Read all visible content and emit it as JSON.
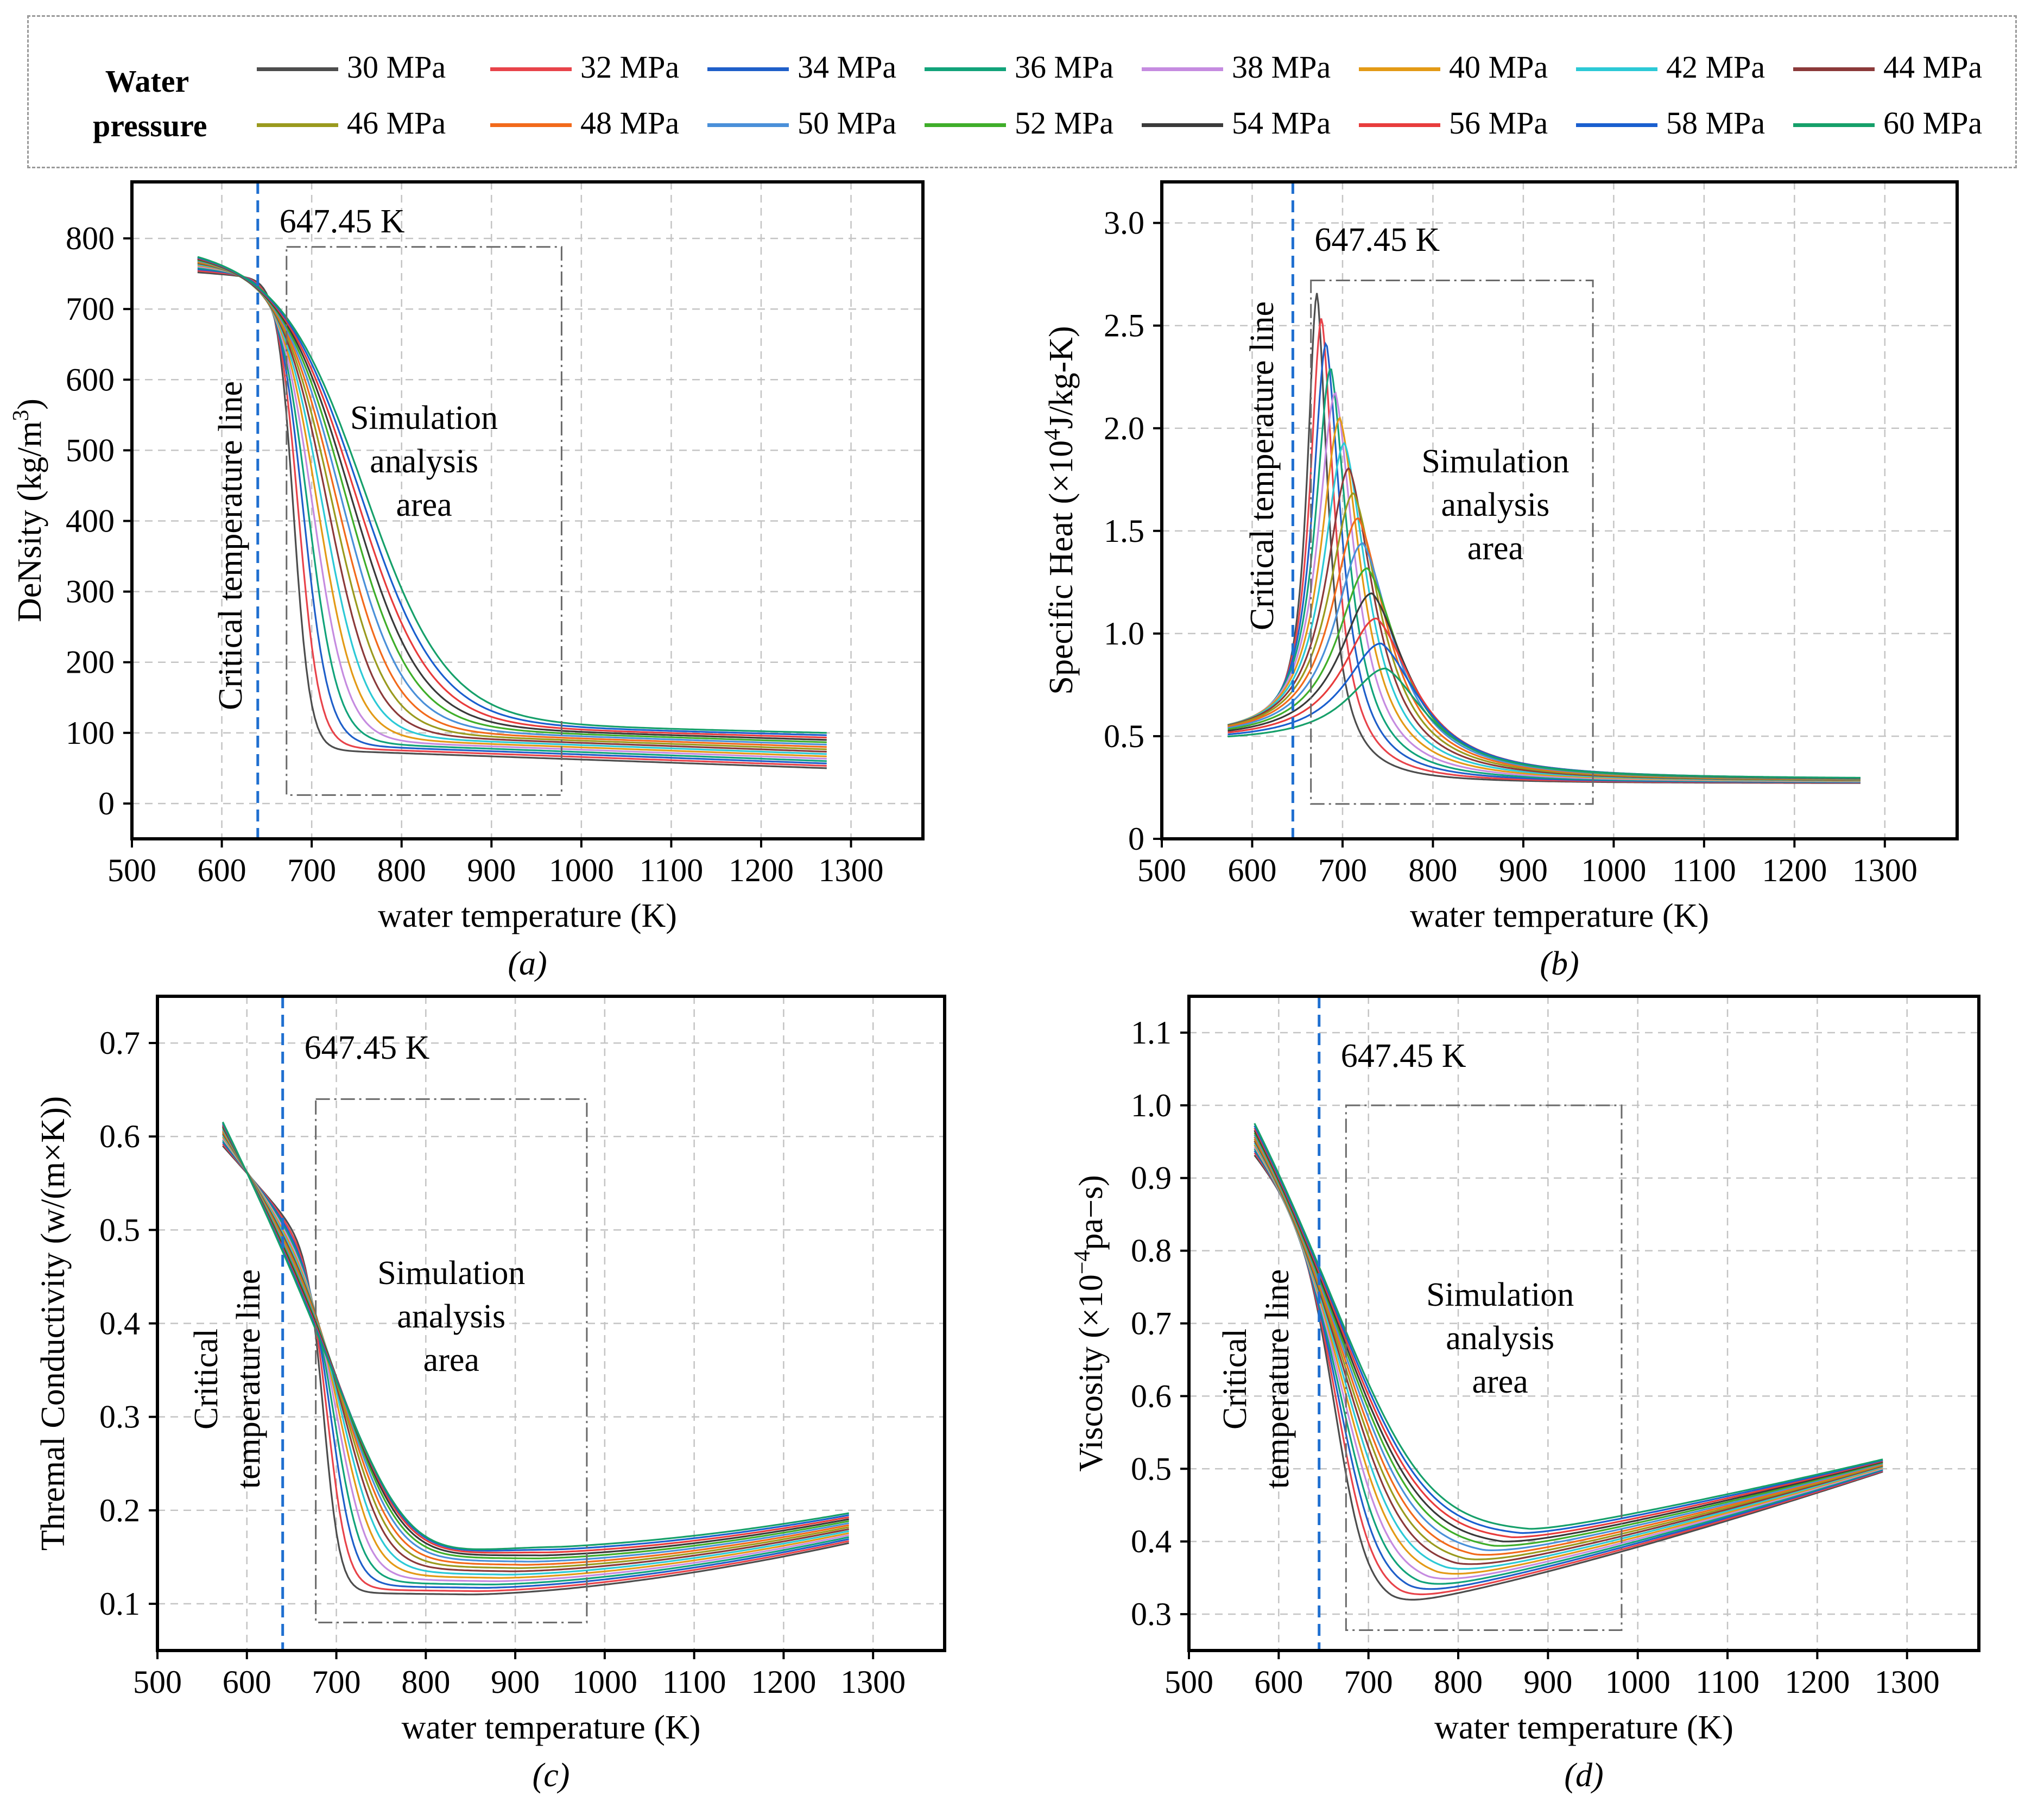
{
  "legend": {
    "title_line1": "Water",
    "title_line2": "pressure",
    "items": [
      {
        "label": "30 MPa",
        "color": "#4d4d4d"
      },
      {
        "label": "32 MPa",
        "color": "#e8434a"
      },
      {
        "label": "34 MPa",
        "color": "#1f5fc9"
      },
      {
        "label": "36 MPa",
        "color": "#12a37a"
      },
      {
        "label": "38 MPa",
        "color": "#c58be0"
      },
      {
        "label": "40 MPa",
        "color": "#e39a16"
      },
      {
        "label": "42 MPa",
        "color": "#2cc9d6"
      },
      {
        "label": "44 MPa",
        "color": "#8b3a3a"
      },
      {
        "label": "46 MPa",
        "color": "#9a9a1e"
      },
      {
        "label": "48 MPa",
        "color": "#f26a1b"
      },
      {
        "label": "50 MPa",
        "color": "#4a90d9"
      },
      {
        "label": "52 MPa",
        "color": "#3fae2a"
      },
      {
        "label": "54 MPa",
        "color": "#3a3a3a"
      },
      {
        "label": "56 MPa",
        "color": "#e83c3c"
      },
      {
        "label": "58 MPa",
        "color": "#1a5fcf"
      },
      {
        "label": "60 MPa",
        "color": "#16a06a"
      }
    ]
  },
  "chart_data": [
    {
      "type": "line",
      "panel_label": "(a)",
      "xlabel": "water temperature (K)",
      "ylabel": "DeNsity (kg/m",
      "ylabel_sup": "3",
      "ylabel_end": ")",
      "xlim": [
        500,
        1380
      ],
      "ylim": [
        -50,
        880
      ],
      "xticks": [
        500,
        600,
        700,
        800,
        900,
        1000,
        1100,
        1200,
        1300
      ],
      "yticks": [
        0,
        100,
        200,
        300,
        400,
        500,
        600,
        700,
        800
      ],
      "xtick_labels": [
        "500",
        "600",
        "700",
        "800",
        "900",
        "1000",
        "1100",
        "1200",
        "1300"
      ],
      "ytick_labels": [
        "0",
        "100",
        "200",
        "300",
        "400",
        "500",
        "600",
        "700",
        "800"
      ],
      "critical_x": 640,
      "critical_label": "647.45 K",
      "critical_text": [
        "Critical temperature line"
      ],
      "area_box": {
        "x": [
          672,
          978
        ],
        "y": [
          12,
          788
        ]
      },
      "area_text": [
        "Simulation",
        "analysis",
        "area"
      ],
      "x_range": [
        573,
        1273
      ],
      "curve": {
        "kind": "sigmoid",
        "y0": [
          752,
          785
        ],
        "yinf": [
          50,
          100
        ],
        "tc": [
          680,
          760
        ],
        "w": [
          9,
          46
        ],
        "slope": [
          -0.1,
          -0.13
        ]
      }
    },
    {
      "type": "line",
      "panel_label": "(b)",
      "xlabel": "water temperature (K)",
      "ylabel": "Specific Heat (×10",
      "ylabel_sup": "4",
      "ylabel_end": "J/kg-K)",
      "xlim": [
        500,
        1380
      ],
      "ylim": [
        0,
        3.2
      ],
      "xticks": [
        500,
        600,
        700,
        800,
        900,
        1000,
        1100,
        1200,
        1300
      ],
      "yticks": [
        0,
        0.5,
        1.0,
        1.5,
        2.0,
        2.5,
        3.0
      ],
      "xtick_labels": [
        "500",
        "600",
        "700",
        "800",
        "900",
        "1000",
        "1100",
        "1200",
        "1300"
      ],
      "ytick_labels": [
        "0",
        "0.5",
        "1.0",
        "1.5",
        "2.0",
        "2.5",
        "3.0"
      ],
      "critical_x": 645,
      "critical_label": "647.45 K",
      "critical_text": [
        "Critical temperature line"
      ],
      "area_box": {
        "x": [
          665,
          977
        ],
        "y": [
          0.17,
          2.72
        ]
      },
      "area_text": [
        "Simulation",
        "analysis",
        "area"
      ],
      "x_range": [
        573,
        1273
      ],
      "curve": {
        "kind": "peak",
        "peak_x": [
          672,
          748
        ],
        "peak_y": [
          2.66,
          0.83
        ],
        "base": [
          0.27,
          0.29
        ],
        "start": [
          0.5,
          0.47
        ],
        "wl": [
          10,
          38
        ],
        "wr": [
          16,
          60
        ]
      }
    },
    {
      "type": "line",
      "panel_label": "(c)",
      "xlabel": "water temperature (K)",
      "ylabel": "Thremal Conductivity (w/(m×K))",
      "ylabel_sup": "",
      "ylabel_end": "",
      "xlim": [
        500,
        1380
      ],
      "ylim": [
        0.05,
        0.75
      ],
      "xticks": [
        500,
        600,
        700,
        800,
        900,
        1000,
        1100,
        1200,
        1300
      ],
      "yticks": [
        0.1,
        0.2,
        0.3,
        0.4,
        0.5,
        0.6,
        0.7
      ],
      "xtick_labels": [
        "500",
        "600",
        "700",
        "800",
        "900",
        "1000",
        "1100",
        "1200",
        "1300"
      ],
      "ytick_labels": [
        "0.1",
        "0.2",
        "0.3",
        "0.4",
        "0.5",
        "0.6",
        "0.7"
      ],
      "critical_x": 640,
      "critical_label": "647.45 K",
      "critical_text": [
        "Critical",
        "temperature line"
      ],
      "area_box": {
        "x": [
          677,
          980
        ],
        "y": [
          0.08,
          0.64
        ]
      },
      "area_text": [
        "Simulation",
        "analysis",
        "area"
      ],
      "x_range": [
        573,
        1273
      ],
      "curve": {
        "kind": "valley",
        "y0": [
          0.59,
          0.62
        ],
        "ymin": [
          0.11,
          0.163
        ],
        "xmin": [
          850,
          950
        ],
        "yend": [
          0.165,
          0.197
        ],
        "tc": [
          687,
          757
        ],
        "w": [
          9,
          40
        ],
        "decay": [
          0.0012,
          0.0021
        ],
        "rise": 1.6
      }
    },
    {
      "type": "line",
      "panel_label": "(d)",
      "xlabel": "water temperature (K)",
      "ylabel": "Viscosity (×10",
      "ylabel_sup": "−4",
      "ylabel_end": "pa−s)",
      "xlim": [
        500,
        1380
      ],
      "ylim": [
        0.25,
        1.15
      ],
      "xticks": [
        500,
        600,
        700,
        800,
        900,
        1000,
        1100,
        1200,
        1300
      ],
      "yticks": [
        0.3,
        0.4,
        0.5,
        0.6,
        0.7,
        0.8,
        0.9,
        1.0,
        1.1
      ],
      "xtick_labels": [
        "500",
        "600",
        "700",
        "800",
        "900",
        "1000",
        "1100",
        "1200",
        "1300"
      ],
      "ytick_labels": [
        "0.3",
        "0.4",
        "0.5",
        "0.6",
        "0.7",
        "0.8",
        "0.9",
        "1.0",
        "1.1"
      ],
      "critical_x": 645,
      "critical_label": "647.45 K",
      "critical_text": [
        "Critical",
        "temperature line"
      ],
      "area_box": {
        "x": [
          675,
          982
        ],
        "y": [
          0.278,
          1.0
        ]
      },
      "area_text": [
        "Simulation",
        "analysis",
        "area"
      ],
      "x_range": [
        573,
        1273
      ],
      "curve": {
        "kind": "valley",
        "y0": [
          0.935,
          1.01
        ],
        "ymin": [
          0.312,
          0.418
        ],
        "xmin": [
          725,
          880
        ],
        "yend": [
          0.496,
          0.513
        ],
        "tc": [
          666,
          716
        ],
        "w": [
          18,
          52
        ],
        "decay": [
          0.0016,
          0.0022
        ],
        "rise": 1.2
      }
    }
  ]
}
